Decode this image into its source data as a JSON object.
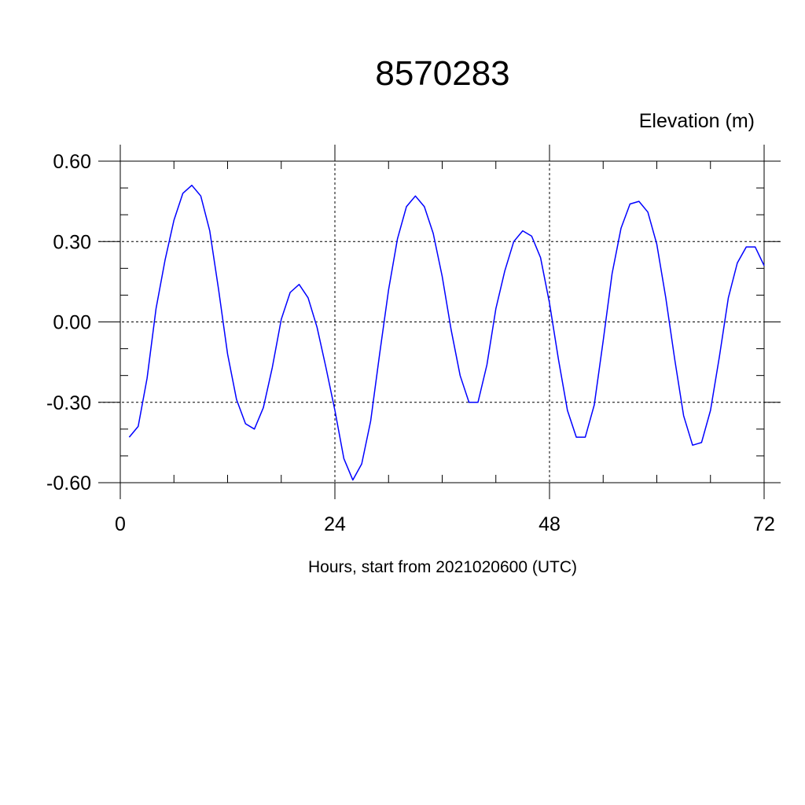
{
  "chart_data": {
    "type": "line",
    "title": "8570283",
    "units_label": "Elevation (m)",
    "xlabel": "Hours, start from 2021020600 (UTC)",
    "ylabel": "",
    "xlim": [
      0,
      72
    ],
    "ylim": [
      -0.6,
      0.6
    ],
    "grid": true,
    "x_ticks": [
      0,
      24,
      48,
      72
    ],
    "x_tick_labels": [
      "0",
      "24",
      "48",
      "72"
    ],
    "y_ticks": [
      0.6,
      0.3,
      0.0,
      -0.3,
      -0.6
    ],
    "y_tick_labels": [
      "0.60",
      "0.30",
      "0.00",
      "-0.30",
      "-0.60"
    ],
    "line_color": "#0000ff",
    "series": [
      {
        "x": [
          1,
          2,
          3,
          4,
          5,
          6,
          7,
          8,
          9,
          10,
          11,
          12,
          13,
          14,
          15,
          16,
          17,
          18,
          19,
          20,
          21,
          22,
          23,
          24,
          25,
          26,
          27,
          28,
          29,
          30,
          31,
          32,
          33,
          34,
          35,
          36,
          37,
          38,
          39,
          40,
          41,
          42,
          43,
          44,
          45,
          46,
          47,
          48,
          49,
          50,
          51,
          52,
          53,
          54,
          55,
          56,
          57,
          58,
          59,
          60,
          61,
          62,
          63,
          64,
          65,
          66,
          67,
          68,
          69,
          70,
          71,
          72
        ],
        "values": [
          -0.43,
          -0.39,
          -0.21,
          0.05,
          0.23,
          0.38,
          0.48,
          0.51,
          0.47,
          0.34,
          0.12,
          -0.12,
          -0.29,
          -0.38,
          -0.4,
          -0.32,
          -0.17,
          0.01,
          0.11,
          0.14,
          0.09,
          -0.02,
          -0.17,
          -0.33,
          -0.51,
          -0.59,
          -0.53,
          -0.37,
          -0.12,
          0.12,
          0.31,
          0.43,
          0.47,
          0.43,
          0.33,
          0.17,
          -0.03,
          -0.2,
          -0.3,
          -0.3,
          -0.16,
          0.05,
          0.19,
          0.3,
          0.34,
          0.32,
          0.24,
          0.07,
          -0.14,
          -0.33,
          -0.43,
          -0.43,
          -0.31,
          -0.07,
          0.18,
          0.35,
          0.44,
          0.45,
          0.41,
          0.29,
          0.09,
          -0.14,
          -0.35,
          -0.46,
          -0.45,
          -0.33,
          -0.13,
          0.09,
          0.22,
          0.28,
          0.28,
          0.21
        ]
      }
    ]
  }
}
